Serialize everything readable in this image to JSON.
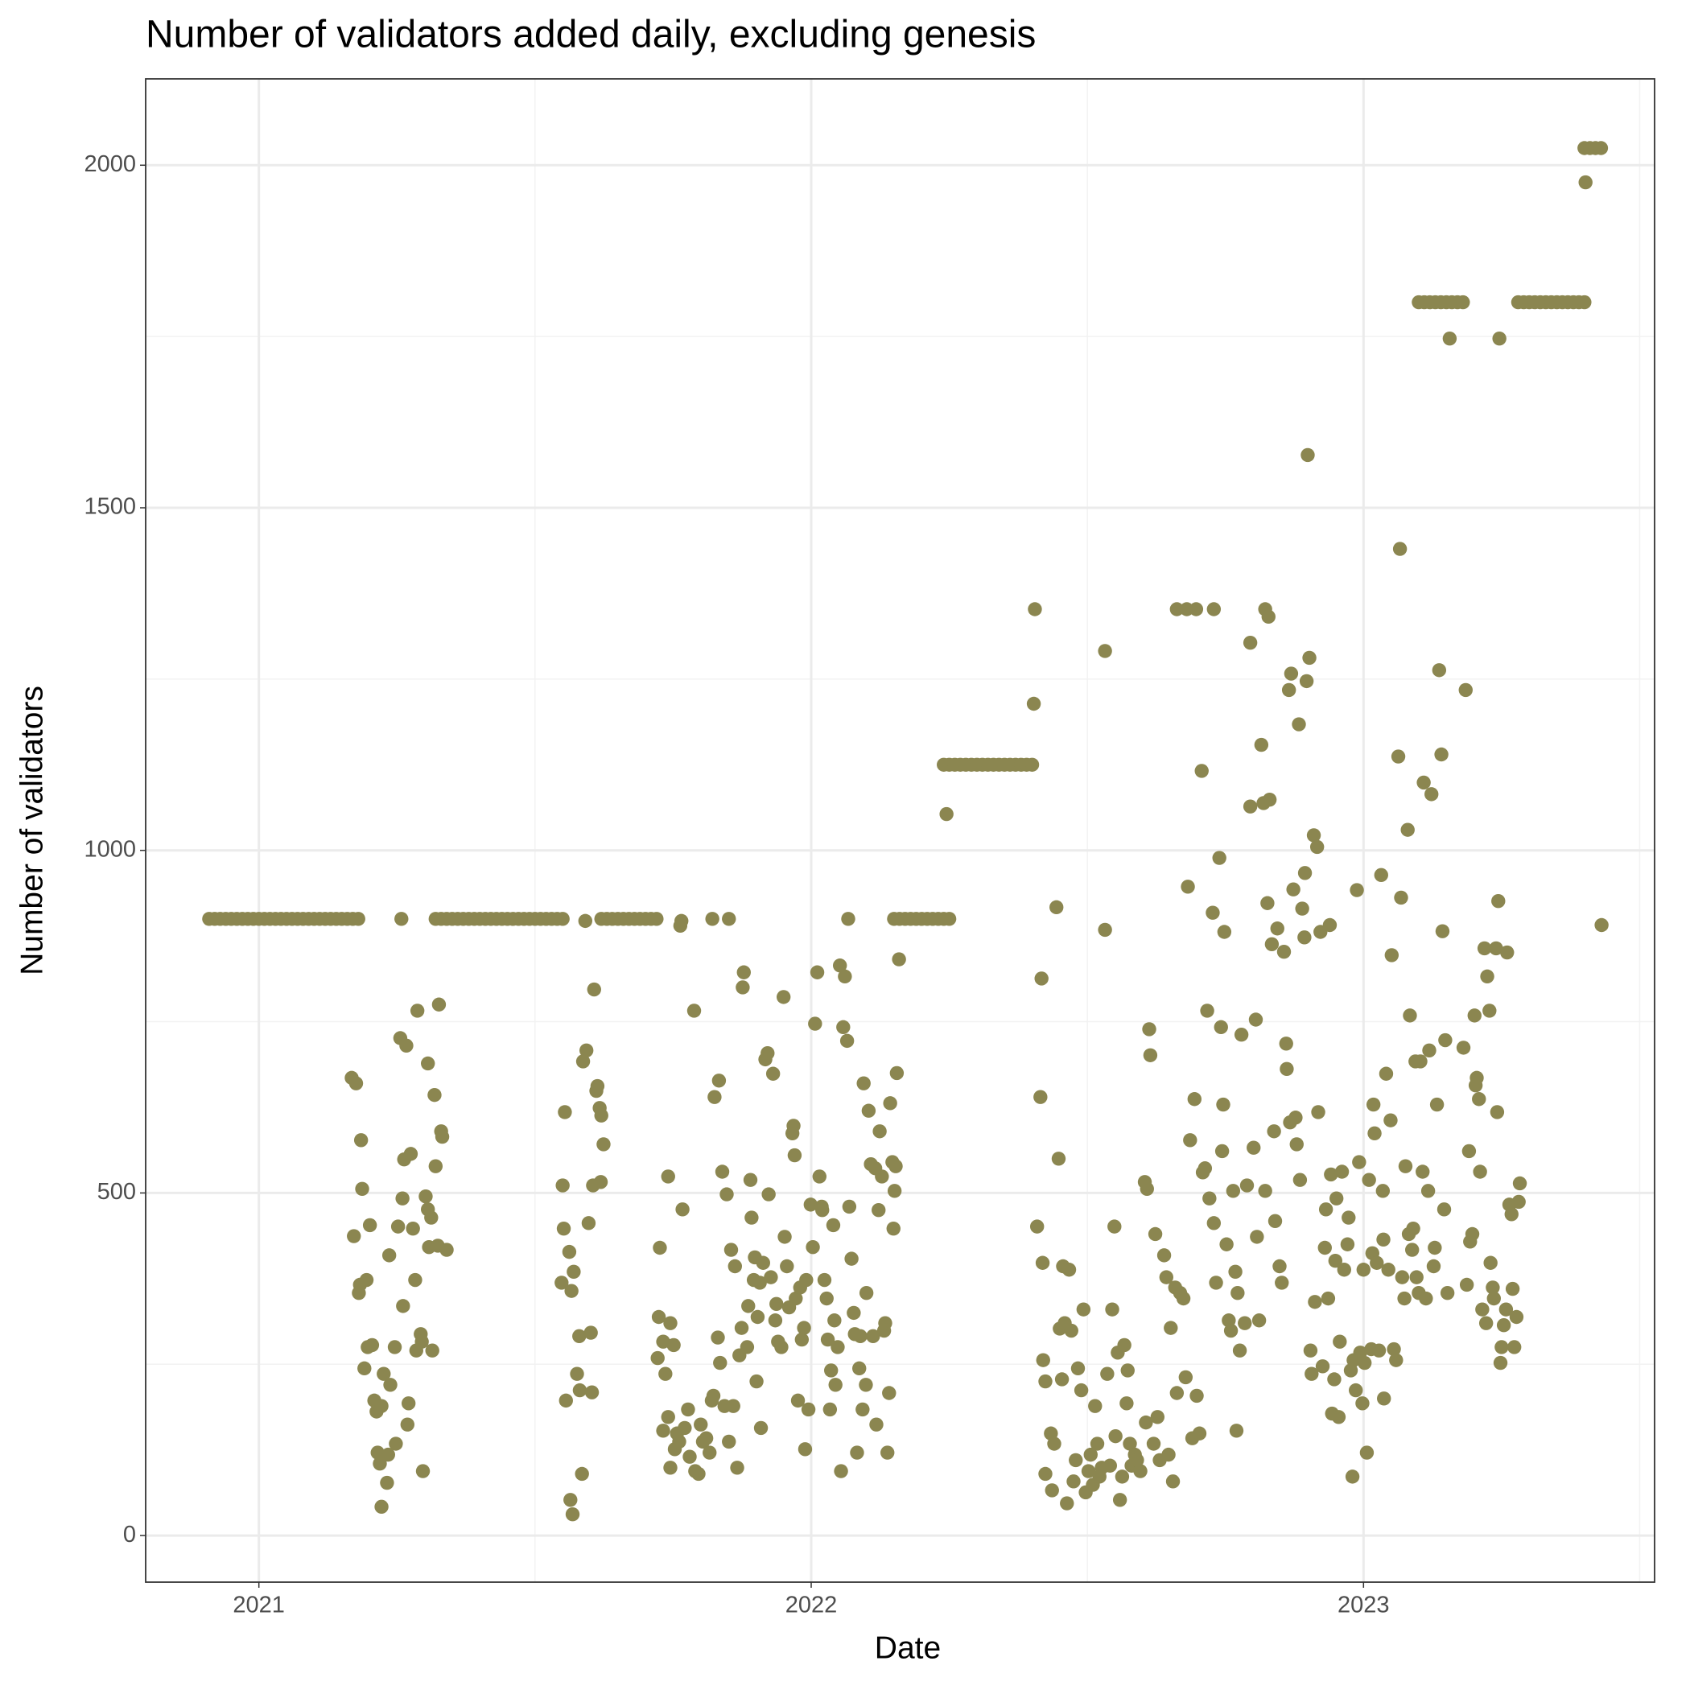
{
  "chart_data": {
    "type": "scatter",
    "title": "Number of validators added daily, excluding genesis",
    "xlabel": "Date",
    "ylabel": "Number of validators",
    "color": "#8b8650",
    "grid": true,
    "xlim": [
      2020.795,
      2023.527
    ],
    "ylim": [
      -68,
      2126
    ],
    "xticks": [
      2021,
      2022,
      2023
    ],
    "yticks": [
      0,
      500,
      1000,
      1500,
      2000
    ],
    "x": [
      2020.91,
      2020.92,
      2020.93,
      2020.94,
      2020.95,
      2020.96,
      2020.97,
      2020.98,
      2020.99,
      2021.0,
      2021.01,
      2021.02,
      2021.03,
      2021.04,
      2021.05,
      2021.06,
      2021.07,
      2021.08,
      2021.09,
      2021.1,
      2021.11,
      2021.12,
      2021.13,
      2021.14,
      2021.15,
      2021.16,
      2021.17,
      2021.18,
      2021.258,
      2021.32,
      2021.33,
      2021.34,
      2021.35,
      2021.36,
      2021.37,
      2021.38,
      2021.39,
      2021.4,
      2021.41,
      2021.42,
      2021.43,
      2021.44,
      2021.45,
      2021.46,
      2021.47,
      2021.48,
      2021.49,
      2021.5,
      2021.51,
      2021.52,
      2021.53,
      2021.54,
      2021.55,
      2021.591,
      2021.62,
      2021.63,
      2021.64,
      2021.65,
      2021.66,
      2021.67,
      2021.68,
      2021.69,
      2021.7,
      2021.71,
      2021.72,
      2021.765,
      2021.763,
      2021.821,
      2021.851,
      2022.067,
      2022.15,
      2022.16,
      2022.17,
      2022.18,
      2022.19,
      2022.2,
      2022.21,
      2022.22,
      2022.23,
      2022.24,
      2022.25,
      2022.24,
      2022.25,
      2022.26,
      2022.27,
      2022.28,
      2022.29,
      2022.3,
      2022.31,
      2022.32,
      2022.33,
      2022.34,
      2022.35,
      2022.36,
      2022.37,
      2022.38,
      2022.39,
      2022.4,
      2023.1,
      2023.11,
      2023.12,
      2023.13,
      2023.14,
      2023.15,
      2023.16,
      2023.17,
      2023.18,
      2023.28,
      2023.29,
      2023.3,
      2023.31,
      2023.32,
      2023.33,
      2023.34,
      2023.35,
      2023.36,
      2023.37,
      2023.38,
      2023.39,
      2023.4,
      2023.4,
      2023.41,
      2023.42,
      2023.43,
      2022.245,
      2022.405,
      2022.403,
      2022.532,
      2022.662,
      2022.68,
      2022.697,
      2022.729,
      2022.822,
      2022.828,
      2022.795,
      2022.899,
      2023.066,
      2023.156,
      2023.246,
      2023.402,
      2023.431,
      2021.168,
      2021.176,
      2021.185,
      2021.187,
      2021.172,
      2021.181,
      2021.183,
      2021.195,
      2021.201,
      2021.191,
      2021.197,
      2021.205,
      2021.209,
      2021.213,
      2021.222,
      2021.226,
      2021.215,
      2021.219,
      2021.234,
      2021.232,
      2021.222,
      2021.248,
      2021.238,
      2021.236,
      2021.246,
      2021.252,
      2021.256,
      2021.26,
      2021.263,
      2021.267,
      2021.275,
      2021.261,
      2021.271,
      2021.269,
      2021.279,
      2021.283,
      2021.287,
      2021.285,
      2021.293,
      2021.297,
      2021.302,
      2021.306,
      2021.306,
      2021.312,
      2021.308,
      2021.314,
      2021.318,
      2021.32,
      2021.326,
      2021.33,
      2021.332,
      2021.324,
      2021.34,
      2021.295,
      2021.55,
      2021.554,
      2021.552,
      2021.548,
      2021.556,
      2021.562,
      2021.566,
      2021.57,
      2021.564,
      2021.568,
      2021.576,
      2021.58,
      2021.581,
      2021.585,
      2021.587,
      2021.593,
      2021.597,
      2021.601,
      2021.603,
      2021.605,
      2021.607,
      2021.611,
      2021.613,
      2021.617,
      2021.619,
      2021.624,
      2021.62,
      2021.722,
      2021.726,
      2021.732,
      2021.736,
      2021.724,
      2021.741,
      2021.745,
      2021.751,
      2021.767,
      2021.732,
      2021.741,
      2021.745,
      2021.753,
      2021.757,
      2021.761,
      2021.771,
      2021.777,
      2021.78,
      2021.79,
      2021.796,
      2021.8,
      2021.804,
      2021.81,
      2021.816,
      2021.788,
      2021.82,
      2021.823,
      2021.825,
      2021.833,
      2021.831,
      2021.835,
      2021.839,
      2021.843,
      2021.847,
      2021.851,
      2021.855,
      2021.859,
      2021.862,
      2021.866,
      2021.87,
      2021.874,
      2021.876,
      2021.878,
      2021.884,
      2021.886,
      2021.89,
      2021.892,
      2021.896,
      2021.898,
      2021.901,
      2021.903,
      2021.907,
      2021.909,
      2021.913,
      2021.917,
      2021.921,
      2021.923,
      2021.927,
      2021.931,
      2021.935,
      2021.937,
      2021.94,
      2021.946,
      2021.952,
      2021.95,
      2021.956,
      2021.96,
      2021.966,
      2021.968,
      2021.97,
      2021.972,
      2021.976,
      2021.98,
      2021.983,
      2021.987,
      2021.989,
      2021.991,
      2021.995,
      2021.999,
      2022.003,
      2022.007,
      2022.011,
      2022.015,
      2022.019,
      2022.02,
      2022.024,
      2022.028,
      2022.03,
      2022.034,
      2022.036,
      2022.04,
      2022.042,
      2022.044,
      2022.048,
      2022.052,
      2022.054,
      2022.058,
      2022.061,
      2022.065,
      2022.069,
      2022.073,
      2022.077,
      2022.079,
      2022.083,
      2022.087,
      2022.089,
      2022.093,
      2022.095,
      2022.099,
      2022.1,
      2022.104,
      2022.108,
      2022.112,
      2022.116,
      2022.118,
      2022.122,
      2022.124,
      2022.128,
      2022.132,
      2022.134,
      2022.138,
      2022.143,
      2022.147,
      2022.149,
      2022.151,
      2022.155,
      2022.159,
      2022.141,
      2022.153,
      2022.409,
      2022.415,
      2022.417,
      2022.419,
      2022.42,
      2022.424,
      2022.424,
      2022.434,
      2022.436,
      2022.44,
      2022.444,
      2022.448,
      2022.45,
      2022.454,
      2022.456,
      2022.459,
      2022.463,
      2022.467,
      2022.471,
      2022.475,
      2022.479,
      2022.483,
      2022.489,
      2022.493,
      2022.497,
      2022.502,
      2022.506,
      2022.51,
      2022.514,
      2022.518,
      2022.522,
      2022.526,
      2022.532,
      2022.536,
      2022.541,
      2022.545,
      2022.549,
      2022.551,
      2022.555,
      2022.559,
      2022.563,
      2022.567,
      2022.571,
      2022.573,
      2022.577,
      2022.58,
      2022.586,
      2022.59,
      2022.596,
      2022.604,
      2022.608,
      2022.606,
      2022.612,
      2022.614,
      2022.62,
      2022.623,
      2022.627,
      2022.631,
      2022.639,
      2022.643,
      2022.647,
      2022.651,
      2022.655,
      2022.659,
      2022.662,
      2022.668,
      2022.674,
      2022.678,
      2022.682,
      2022.686,
      2022.69,
      2022.694,
      2022.698,
      2022.703,
      2022.707,
      2022.713,
      2022.709,
      2022.717,
      2022.721,
      2022.727,
      2022.729,
      2022.733,
      2022.739,
      2022.742,
      2022.744,
      2022.746,
      2022.748,
      2022.752,
      2022.756,
      2022.76,
      2022.764,
      2022.768,
      2022.77,
      2022.772,
      2022.776,
      2022.779,
      2022.785,
      2022.789,
      2022.795,
      2022.801,
      2022.805,
      2022.807,
      2022.811,
      2022.815,
      2022.819,
      2022.822,
      2022.826,
      2022.83,
      2022.834,
      2022.838,
      2022.84,
      2022.844,
      2022.848,
      2022.852,
      2022.856,
      2022.86,
      2022.861,
      2022.865,
      2022.867,
      2022.869,
      2022.873,
      2022.877,
      2022.879,
      2022.883,
      2022.885,
      2022.889,
      2022.893,
      2022.894,
      2022.897,
      2022.902,
      2022.904,
      2022.906,
      2022.91,
      2022.912,
      2022.916,
      2022.918,
      2022.922,
      2022.926,
      2022.93,
      2022.932,
      2022.936,
      2022.939,
      2022.941,
      2022.943,
      2022.947,
      2022.949,
      2022.951,
      2022.955,
      2022.957,
      2022.961,
      2022.965,
      2022.971,
      2022.973,
      2022.977,
      2022.98,
      2022.982,
      2022.986,
      2022.988,
      2022.992,
      2022.994,
      2022.998,
      2023.0,
      2023.002,
      2023.006,
      2023.01,
      2023.014,
      2023.016,
      2023.018,
      2023.02,
      2023.024,
      2023.028,
      2023.032,
      2023.035,
      2023.036,
      2023.037,
      2023.041,
      2023.045,
      2023.049,
      2023.051,
      2023.055,
      2023.059,
      2023.063,
      2023.068,
      2023.07,
      2023.074,
      2023.076,
      2023.08,
      2023.082,
      2023.084,
      2023.088,
      2023.09,
      2023.094,
      2023.096,
      2023.1,
      2023.103,
      2023.107,
      2023.109,
      2023.113,
      2023.117,
      2023.119,
      2023.123,
      2023.127,
      2023.129,
      2023.133,
      2023.137,
      2023.141,
      2023.143,
      2023.146,
      2023.148,
      2023.152,
      2023.181,
      2023.185,
      2023.187,
      2023.191,
      2023.193,
      2023.197,
      2023.201,
      2023.203,
      2023.205,
      2023.209,
      2023.211,
      2023.215,
      2023.219,
      2023.222,
      2023.224,
      2023.228,
      2023.23,
      2023.234,
      2023.236,
      2023.24,
      2023.242,
      2023.244,
      2023.248,
      2023.25,
      2023.254,
      2023.258,
      2023.26,
      2023.264,
      2023.268,
      2023.27,
      2023.273,
      2023.277,
      2023.281,
      2023.283
    ],
    "values": [
      900,
      900,
      900,
      900,
      900,
      900,
      900,
      900,
      900,
      900,
      900,
      900,
      900,
      900,
      900,
      900,
      900,
      900,
      900,
      900,
      900,
      900,
      900,
      900,
      900,
      900,
      900,
      900,
      900,
      900,
      900,
      900,
      900,
      900,
      900,
      900,
      900,
      900,
      900,
      900,
      900,
      900,
      900,
      900,
      900,
      900,
      900,
      900,
      900,
      900,
      900,
      900,
      900,
      897,
      900,
      900,
      900,
      900,
      900,
      900,
      900,
      900,
      900,
      900,
      900,
      897,
      890,
      900,
      900,
      900,
      900,
      900,
      900,
      900,
      900,
      900,
      900,
      900,
      900,
      900,
      900,
      1125,
      1125,
      1125,
      1125,
      1125,
      1125,
      1125,
      1125,
      1125,
      1125,
      1125,
      1125,
      1125,
      1125,
      1125,
      1125,
      1125,
      1800,
      1800,
      1800,
      1800,
      1800,
      1800,
      1800,
      1800,
      1800,
      1800,
      1800,
      1800,
      1800,
      1800,
      1800,
      1800,
      1800,
      1800,
      1800,
      1800,
      1800,
      1800,
      2025,
      2025,
      2025,
      2025,
      1053,
      1352,
      1214,
      1291,
      1352,
      1352,
      1352,
      1352,
      1352,
      1341,
      1303,
      1577,
      1440,
      1747,
      1747,
      1975,
      891,
      668,
      660,
      577,
      506,
      437,
      354,
      366,
      373,
      453,
      244,
      275,
      278,
      197,
      181,
      189,
      236,
      121,
      105,
      118,
      77,
      42,
      134,
      220,
      409,
      275,
      451,
      726,
      492,
      549,
      715,
      557,
      335,
      193,
      162,
      448,
      373,
      766,
      270,
      294,
      94,
      495,
      689,
      476,
      464,
      421,
      270,
      643,
      539,
      775,
      590,
      582,
      423,
      417,
      283,
      511,
      618,
      448,
      369,
      197,
      414,
      357,
      385,
      52,
      31,
      236,
      291,
      212,
      90,
      692,
      708,
      456,
      296,
      209,
      511,
      797,
      649,
      656,
      624,
      516,
      571,
      613,
      259,
      420,
      283,
      236,
      319,
      524,
      310,
      278,
      476,
      153,
      173,
      99,
      126,
      149,
      137,
      157,
      184,
      115,
      94,
      90,
      162,
      137,
      142,
      121,
      766,
      197,
      204,
      640,
      664,
      289,
      252,
      531,
      189,
      498,
      137,
      417,
      189,
      393,
      99,
      263,
      303,
      800,
      822,
      275,
      335,
      519,
      464,
      373,
      406,
      225,
      319,
      369,
      157,
      398,
      695,
      704,
      498,
      377,
      674,
      314,
      338,
      283,
      275,
      436,
      786,
      393,
      333,
      587,
      598,
      555,
      346,
      197,
      362,
      286,
      303,
      126,
      373,
      184,
      483,
      421,
      747,
      822,
      524,
      480,
      475,
      373,
      346,
      286,
      184,
      241,
      453,
      314,
      220,
      275,
      832,
      94,
      742,
      816,
      722,
      480,
      404,
      325,
      294,
      121,
      244,
      291,
      184,
      660,
      220,
      354,
      620,
      542,
      291,
      536,
      162,
      475,
      590,
      524,
      299,
      310,
      121,
      631,
      545,
      448,
      503,
      675,
      841,
      208,
      539,
      451,
      640,
      813,
      398,
      256,
      225,
      90,
      149,
      66,
      134,
      917,
      550,
      302,
      228,
      393,
      310,
      47,
      388,
      299,
      79,
      110,
      244,
      212,
      330,
      63,
      94,
      118,
      74,
      189,
      134,
      86,
      99,
      884,
      236,
      102,
      330,
      451,
      145,
      267,
      52,
      86,
      278,
      193,
      241,
      134,
      102,
      118,
      110,
      94,
      516,
      506,
      165,
      739,
      701,
      134,
      440,
      173,
      110,
      409,
      377,
      118,
      303,
      79,
      362,
      208,
      354,
      346,
      231,
      947,
      577,
      142,
      637,
      204,
      149,
      1116,
      536,
      530,
      766,
      492,
      909,
      456,
      369,
      989,
      742,
      561,
      629,
      881,
      425,
      314,
      299,
      503,
      385,
      153,
      354,
      270,
      731,
      310,
      511,
      1064,
      566,
      753,
      436,
      314,
      1154,
      1069,
      503,
      923,
      1074,
      863,
      590,
      459,
      886,
      393,
      369,
      852,
      718,
      681,
      1234,
      603,
      1258,
      943,
      610,
      571,
      1184,
      519,
      915,
      873,
      967,
      1247,
      1281,
      270,
      236,
      1022,
      341,
      1005,
      618,
      881,
      247,
      420,
      476,
      346,
      891,
      527,
      178,
      228,
      401,
      492,
      173,
      283,
      531,
      388,
      425,
      464,
      241,
      86,
      256,
      212,
      942,
      545,
      267,
      193,
      388,
      252,
      121,
      519,
      272,
      412,
      629,
      587,
      398,
      270,
      964,
      503,
      432,
      200,
      674,
      388,
      606,
      847,
      272,
      256,
      1137,
      931,
      377,
      346,
      539,
      1030,
      440,
      759,
      417,
      448,
      692,
      377,
      354,
      692,
      531,
      1099,
      346,
      503,
      708,
      1082,
      393,
      420,
      629,
      1263,
      1140,
      882,
      476,
      723,
      354,
      712,
      1234,
      366,
      561,
      429,
      440,
      759,
      657,
      668,
      637,
      531,
      330,
      857,
      310,
      816,
      766,
      398,
      362,
      346,
      857,
      618,
      926,
      252,
      275,
      307,
      330,
      851,
      483,
      469,
      360,
      275,
      319,
      487,
      514
    ]
  }
}
